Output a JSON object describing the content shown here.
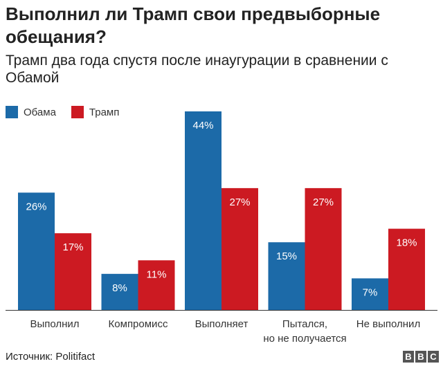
{
  "title": "Выполнил ли Трамп свои предвыборные обещания?",
  "subtitle": "Трамп два года спустя после инаугурации в сравнении с Обамой",
  "colors": {
    "obama": "#1c6aa8",
    "trump": "#cc1a22"
  },
  "chart_data": {
    "type": "bar",
    "categories": [
      [
        "Выполнил"
      ],
      [
        "Компромисс"
      ],
      [
        "Выполняет"
      ],
      [
        "Пытался,",
        "но не получается"
      ],
      [
        "Не выполнил"
      ]
    ],
    "series": [
      {
        "name": "Обама",
        "values": [
          26,
          8,
          44,
          15,
          7
        ],
        "labels": [
          "26%",
          "8%",
          "44%",
          "15%",
          "7%"
        ]
      },
      {
        "name": "Трамп",
        "values": [
          17,
          11,
          27,
          27,
          18
        ],
        "labels": [
          "17%",
          "11%",
          "27%",
          "27%",
          "18%"
        ]
      }
    ],
    "ylim": [
      0,
      44
    ],
    "grid": false,
    "legend": "top-left"
  },
  "source": "Источник: Politifact",
  "logo": [
    "B",
    "B",
    "C"
  ]
}
